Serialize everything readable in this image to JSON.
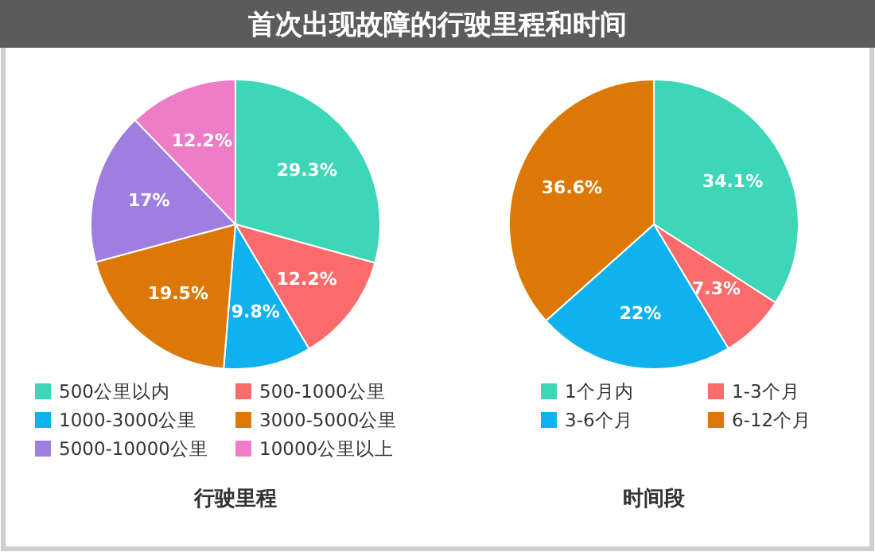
{
  "chart_data": [
    {
      "type": "pie",
      "title": "首次出现故障的行驶里程和时间",
      "xlabel": "行驶里程",
      "categories": [
        "500公里以内",
        "500-1000公里",
        "1000-3000公里",
        "3000-5000公里",
        "5000-10000公里",
        "10000公里以上"
      ],
      "values": [
        29.3,
        12.2,
        9.8,
        19.5,
        17,
        12.2
      ],
      "value_labels": [
        "29.3%",
        "12.2%",
        "9.8%",
        "19.5%",
        "17%",
        "12.2%"
      ],
      "colors": [
        "#3dd6b6",
        "#fb6b6b",
        "#10b2ee",
        "#dc7805",
        "#a07ee0",
        "#ee7cc6"
      ],
      "legend": "bottom"
    },
    {
      "type": "pie",
      "xlabel": "时间段",
      "categories": [
        "1个月内",
        "1-3个月",
        "3-6个月",
        "6-12个月"
      ],
      "values": [
        34.1,
        7.3,
        22,
        36.6
      ],
      "value_labels": [
        "34.1%",
        "7.3%",
        "22%",
        "36.6%"
      ],
      "colors": [
        "#3dd6b6",
        "#fb6b6b",
        "#10b2ee",
        "#dc7805"
      ],
      "legend": "bottom"
    }
  ]
}
